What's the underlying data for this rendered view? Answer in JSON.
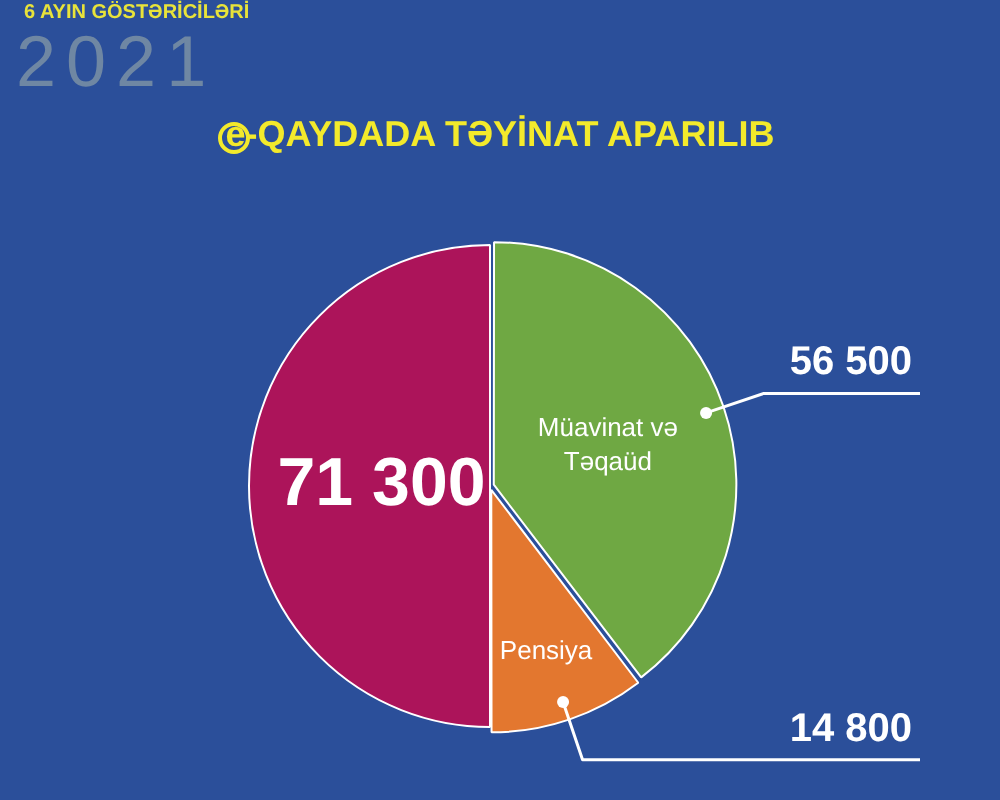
{
  "chart_data": {
    "type": "pie",
    "title": "e-QAYDADA TƏYİNAT APARILIB",
    "subtitle": "6 AYIN GÖSTƏRİCİLƏRİ",
    "annotations": [
      "2021"
    ],
    "categories": [
      "Müavinat və Təqaüd",
      "Pensiya",
      null
    ],
    "values": [
      56500,
      14800,
      71300
    ],
    "value_labels": [
      "56 500",
      "14 800",
      "71 300"
    ],
    "colors": [
      "#6fa843",
      "#e3772f",
      "#ac145a"
    ]
  }
}
